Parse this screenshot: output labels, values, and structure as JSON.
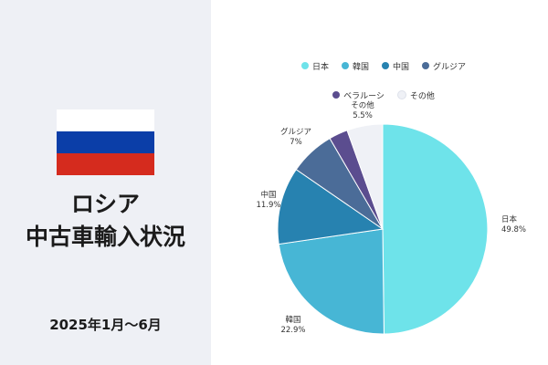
{
  "left": {
    "title_line1": "ロシア",
    "title_line2": "中古車輸入状況",
    "period": "2025年1月〜6月"
  },
  "flag_colors": [
    "#ffffff",
    "#0b3ea8",
    "#d52b1e"
  ],
  "chart_data": {
    "type": "pie",
    "start_angle_deg": 0,
    "direction": "clockwise",
    "legend_position": "top",
    "slices": [
      {
        "name": "日本",
        "value": 49.8,
        "label": "49.8%",
        "color": "#6ee3ea"
      },
      {
        "name": "韓国",
        "value": 22.9,
        "label": "22.9%",
        "color": "#47b6d5"
      },
      {
        "name": "中国",
        "value": 11.9,
        "label": "11.9%",
        "color": "#2782b0"
      },
      {
        "name": "グルジア",
        "value": 7,
        "label": "7%",
        "color": "#4b6c98"
      },
      {
        "name": "ベラルーシ",
        "value": 2.9,
        "label": "",
        "color": "#5b4d8f"
      },
      {
        "name": "その他",
        "value": 5.5,
        "label": "5.5%",
        "color": "#eff1f6"
      }
    ]
  }
}
